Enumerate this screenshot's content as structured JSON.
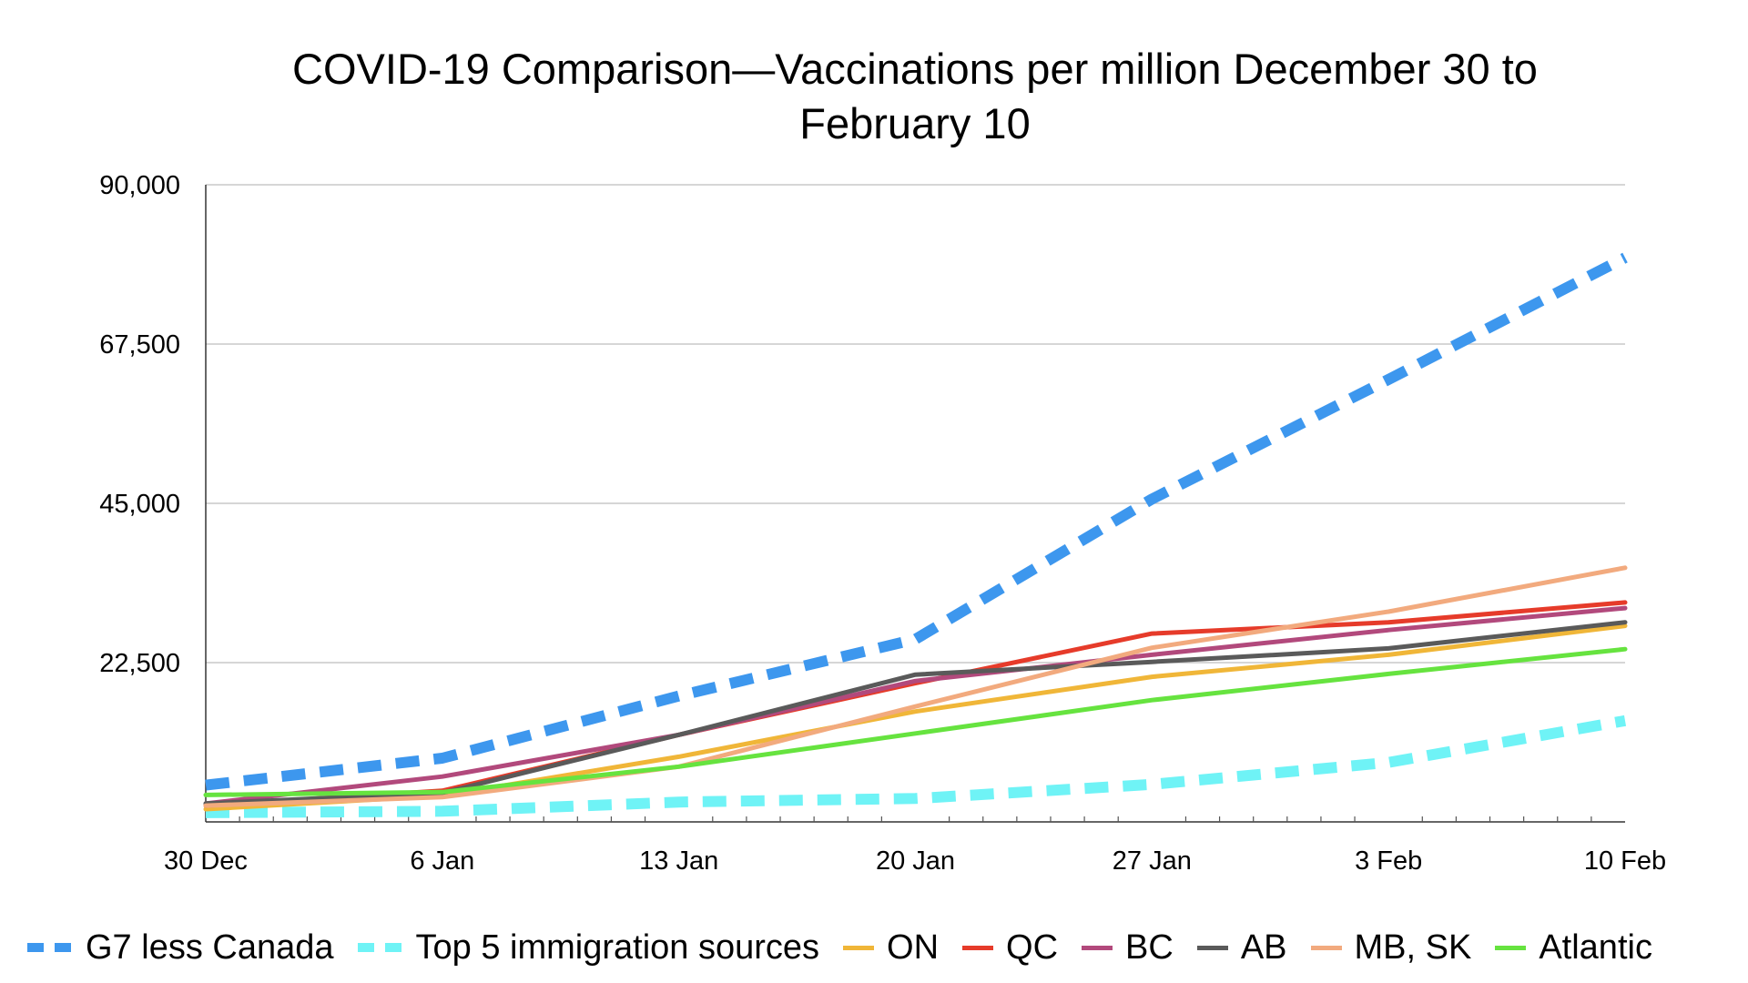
{
  "chart_data": {
    "type": "line",
    "title": "COVID-19 Comparison—Vaccinations per million December 30 to February 10",
    "x": [
      "30 Dec",
      "6 Jan",
      "13 Jan",
      "20 Jan",
      "27 Jan",
      "3 Feb",
      "10 Feb"
    ],
    "ylim": [
      0,
      90000
    ],
    "yticks": [
      22500,
      45000,
      67500,
      90000
    ],
    "ytick_labels": [
      "22,500",
      "45,000",
      "67,500",
      "90,000"
    ],
    "grid": true,
    "legend_position": "bottom",
    "series": [
      {
        "name": "G7 less Canada",
        "style": "dashed",
        "color": "#3d97ee",
        "values": [
          5200,
          9000,
          17800,
          25800,
          45600,
          62500,
          79700
        ]
      },
      {
        "name": "Top 5 immigration sources",
        "style": "dashed",
        "color": "#6ff3f6",
        "values": [
          1300,
          1500,
          2800,
          3300,
          5300,
          8400,
          14300
        ]
      },
      {
        "name": "ON",
        "style": "solid",
        "color": "#f0b638",
        "values": [
          1800,
          3700,
          9200,
          15600,
          20500,
          23600,
          27700
        ]
      },
      {
        "name": "QC",
        "style": "solid",
        "color": "#e63b2a",
        "values": [
          2300,
          4400,
          12300,
          19600,
          26600,
          28200,
          31000
        ]
      },
      {
        "name": "BC",
        "style": "solid",
        "color": "#b2497c",
        "values": [
          2600,
          6400,
          12300,
          19900,
          23600,
          27100,
          30200
        ]
      },
      {
        "name": "AB",
        "style": "solid",
        "color": "#5a5a5a",
        "values": [
          2600,
          4100,
          12300,
          20800,
          22600,
          24500,
          28200
        ]
      },
      {
        "name": "MB, SK",
        "style": "solid",
        "color": "#f2aa7e",
        "values": [
          2300,
          3500,
          7800,
          16300,
          24600,
          29700,
          35900
        ]
      },
      {
        "name": "Atlantic",
        "style": "solid",
        "color": "#66e33f",
        "values": [
          3800,
          4200,
          7800,
          12500,
          17200,
          20900,
          24400
        ]
      }
    ]
  }
}
